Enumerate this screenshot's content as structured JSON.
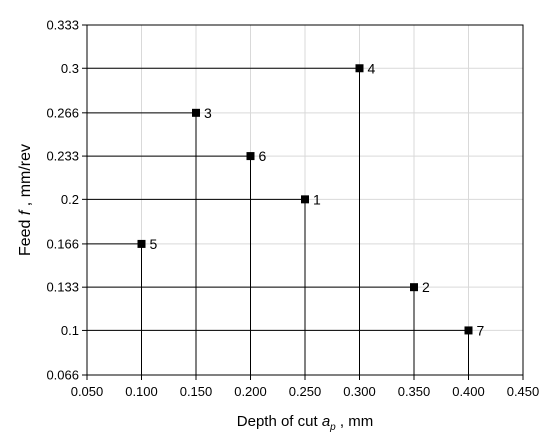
{
  "chart_data": {
    "type": "scatter",
    "xlabel": {
      "main": "Depth of cut ",
      "symbol": "a",
      "sub": "p",
      "unit": " , mm"
    },
    "ylabel": {
      "main": "Feed ",
      "symbol": "f",
      "unit": " , mm/rev"
    },
    "xlim": [
      0.05,
      0.45
    ],
    "ylim": [
      0.066,
      0.333
    ],
    "x_ticks": [
      0.05,
      0.1,
      0.15,
      0.2,
      0.25,
      0.3,
      0.35,
      0.4,
      0.45
    ],
    "x_tick_labels": [
      "0.050",
      "0.100",
      "0.150",
      "0.200",
      "0.250",
      "0.300",
      "0.350",
      "0.400",
      "0.450"
    ],
    "y_ticks": [
      0.066,
      0.1,
      0.133,
      0.166,
      0.2,
      0.233,
      0.266,
      0.3,
      0.333
    ],
    "y_tick_labels": [
      "0.066",
      "0.1",
      "0.133",
      "0.166",
      "0.2",
      "0.233",
      "0.266",
      "0.3",
      "0.333"
    ],
    "grid": true,
    "drop_lines": true,
    "points": [
      {
        "label": "1",
        "x": 0.25,
        "y": 0.2
      },
      {
        "label": "2",
        "x": 0.35,
        "y": 0.133
      },
      {
        "label": "3",
        "x": 0.15,
        "y": 0.266
      },
      {
        "label": "4",
        "x": 0.3,
        "y": 0.3
      },
      {
        "label": "5",
        "x": 0.1,
        "y": 0.166
      },
      {
        "label": "6",
        "x": 0.2,
        "y": 0.233
      },
      {
        "label": "7",
        "x": 0.4,
        "y": 0.1
      }
    ],
    "colors": {
      "marker": "#000000",
      "grid": "#d9d9d9",
      "lines": "#000000"
    }
  }
}
